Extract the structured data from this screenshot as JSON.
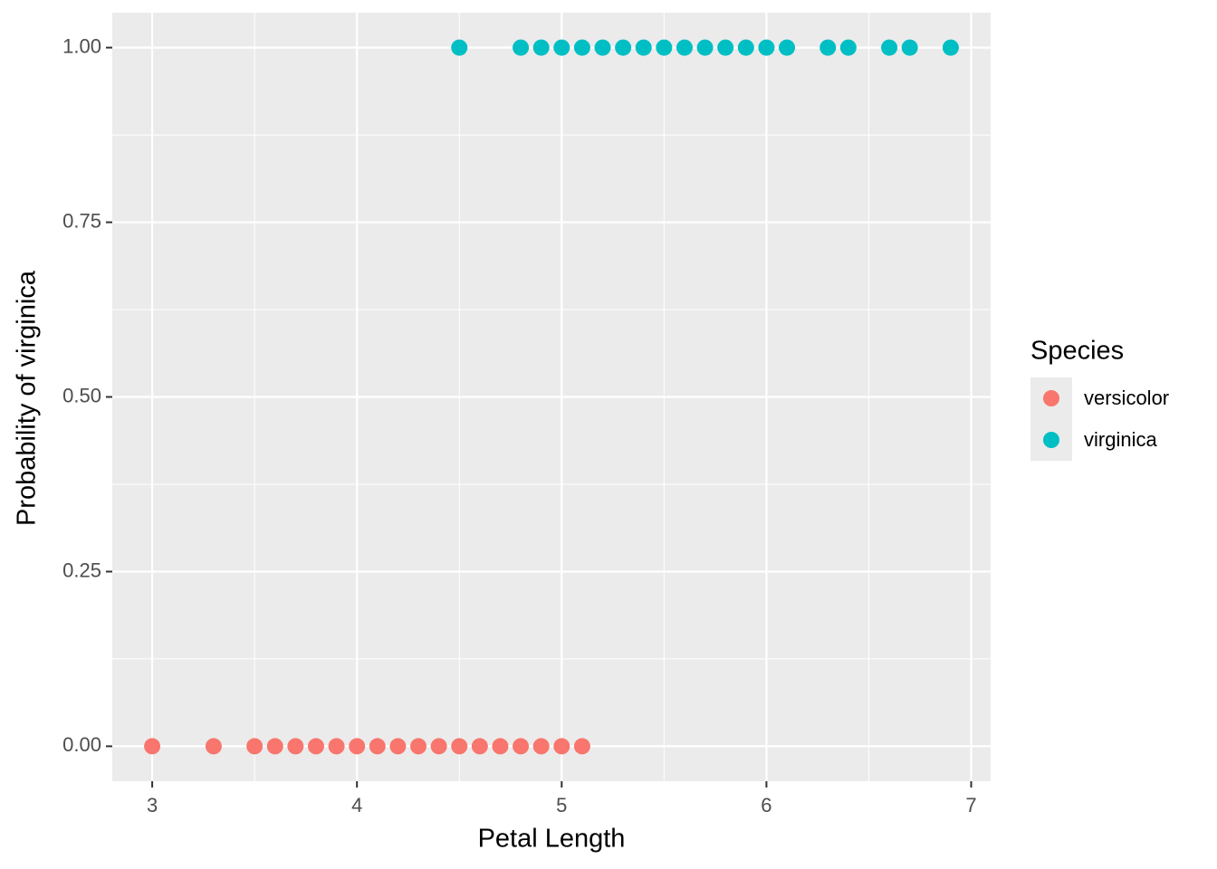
{
  "chart_data": {
    "type": "scatter",
    "x_label": "Petal Length",
    "y_label": "Probability of virginica",
    "legend_title": "Species",
    "legend_position": "right",
    "grid": true,
    "xlim": [
      2.805,
      7.095
    ],
    "ylim": [
      -0.05,
      1.05
    ],
    "xticks": [
      3,
      4,
      5,
      6,
      7
    ],
    "yticks": [
      {
        "value": 0,
        "label": "0.00"
      },
      {
        "value": 0.25,
        "label": "0.25"
      },
      {
        "value": 0.5,
        "label": "0.50"
      },
      {
        "value": 0.75,
        "label": "0.75"
      },
      {
        "value": 1,
        "label": "1.00"
      }
    ],
    "series": [
      {
        "name": "versicolor",
        "color": "#F8766D",
        "x": [
          3.0,
          3.3,
          3.5,
          3.6,
          3.7,
          3.8,
          3.9,
          4.0,
          4.1,
          4.2,
          4.3,
          4.4,
          4.5,
          4.6,
          4.7,
          4.8,
          4.9,
          5.0,
          5.1
        ],
        "values": [
          0,
          0,
          0,
          0,
          0,
          0,
          0,
          0,
          0,
          0,
          0,
          0,
          0,
          0,
          0,
          0,
          0,
          0,
          0
        ]
      },
      {
        "name": "virginica",
        "color": "#00BFC4",
        "x": [
          4.5,
          4.8,
          4.9,
          5.0,
          5.1,
          5.2,
          5.3,
          5.4,
          5.5,
          5.6,
          5.7,
          5.8,
          5.9,
          6.0,
          6.1,
          6.3,
          6.4,
          6.6,
          6.7,
          6.9
        ],
        "values": [
          1,
          1,
          1,
          1,
          1,
          1,
          1,
          1,
          1,
          1,
          1,
          1,
          1,
          1,
          1,
          1,
          1,
          1,
          1,
          1
        ]
      }
    ]
  }
}
